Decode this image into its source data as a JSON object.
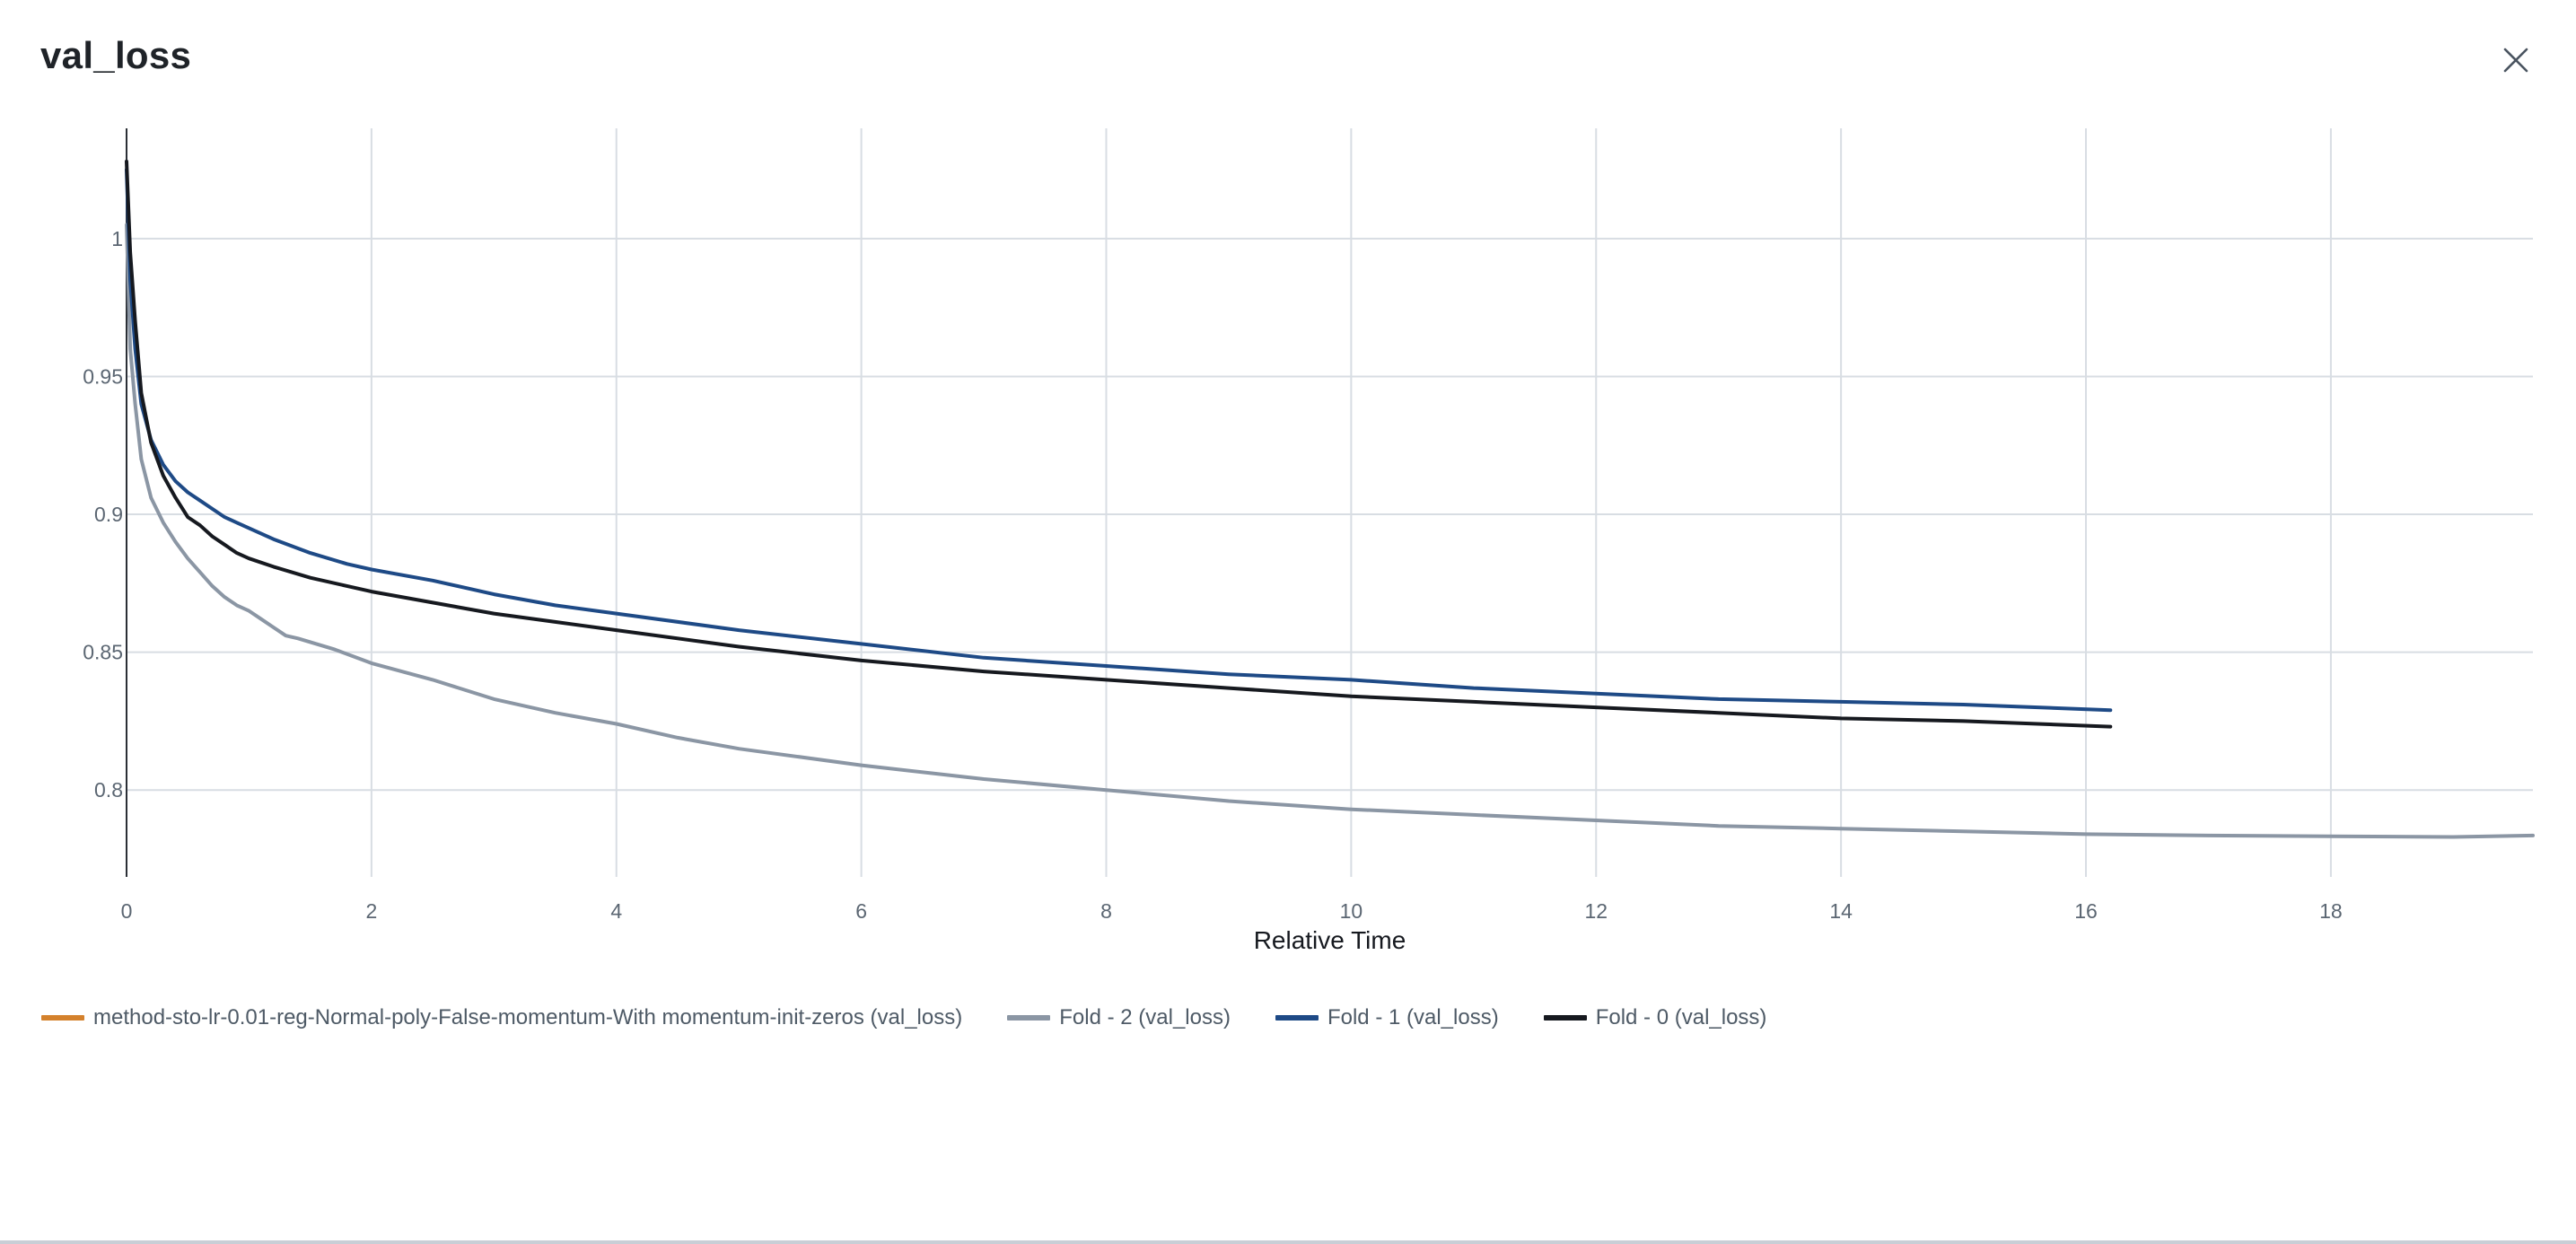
{
  "modal": {
    "title": "val_loss",
    "close_icon": "close-icon"
  },
  "chart_data": {
    "type": "line",
    "title": "val_loss",
    "xlabel": "Relative Time",
    "ylabel": "",
    "xlim": [
      0,
      19.65
    ],
    "ylim": [
      0.7685,
      1.04
    ],
    "xticks": [
      0,
      2,
      4,
      6,
      8,
      10,
      12,
      14,
      16,
      18
    ],
    "yticks": [
      0.8,
      0.85,
      0.9,
      0.95,
      1
    ],
    "ytick_labels": [
      "0.8",
      "0.85",
      "0.9",
      "0.95",
      "1"
    ],
    "grid": true,
    "legend_position": "bottom",
    "series": [
      {
        "name": "method-sto-lr-0.01-reg-Normal-poly-False-momentum-With momentum-init-zeros (val_loss)",
        "color": "#d4812c",
        "x": [],
        "y": []
      },
      {
        "name": "Fold - 2 (val_loss)",
        "color": "#8b96a4",
        "x": [
          0,
          0.03,
          0.07,
          0.12,
          0.2,
          0.3,
          0.4,
          0.5,
          0.6,
          0.7,
          0.8,
          0.9,
          1.0,
          1.1,
          1.2,
          1.3,
          1.4,
          1.7,
          2.0,
          2.5,
          3.0,
          3.5,
          4.0,
          4.5,
          5.0,
          6.0,
          7.0,
          8.0,
          9.0,
          10.0,
          11.0,
          12.0,
          13.0,
          14.0,
          15.0,
          16.0,
          17.0,
          18.0,
          19.0,
          19.65
        ],
        "y": [
          1.005,
          0.96,
          0.94,
          0.92,
          0.906,
          0.897,
          0.89,
          0.884,
          0.879,
          0.874,
          0.87,
          0.867,
          0.865,
          0.862,
          0.859,
          0.856,
          0.855,
          0.851,
          0.846,
          0.84,
          0.833,
          0.828,
          0.824,
          0.819,
          0.815,
          0.809,
          0.804,
          0.8,
          0.796,
          0.793,
          0.791,
          0.789,
          0.787,
          0.786,
          0.785,
          0.784,
          0.7835,
          0.7832,
          0.783,
          0.7835
        ]
      },
      {
        "name": "Fold - 1 (val_loss)",
        "color": "#1e4a86",
        "x": [
          0,
          0.03,
          0.07,
          0.12,
          0.2,
          0.3,
          0.4,
          0.5,
          0.6,
          0.7,
          0.8,
          0.9,
          1.0,
          1.2,
          1.5,
          1.8,
          2.0,
          2.5,
          3.0,
          3.5,
          4.0,
          5.0,
          6.0,
          7.0,
          8.0,
          9.0,
          10.0,
          11.0,
          12.0,
          13.0,
          14.0,
          15.0,
          16.2
        ],
        "y": [
          1.025,
          0.985,
          0.96,
          0.94,
          0.927,
          0.918,
          0.912,
          0.908,
          0.905,
          0.902,
          0.899,
          0.897,
          0.895,
          0.891,
          0.886,
          0.882,
          0.88,
          0.876,
          0.871,
          0.867,
          0.864,
          0.858,
          0.853,
          0.848,
          0.845,
          0.842,
          0.84,
          0.837,
          0.835,
          0.833,
          0.832,
          0.831,
          0.829
        ]
      },
      {
        "name": "Fold - 0 (val_loss)",
        "color": "#16191f",
        "x": [
          0,
          0.03,
          0.07,
          0.12,
          0.2,
          0.3,
          0.4,
          0.5,
          0.6,
          0.7,
          0.8,
          0.9,
          1.0,
          1.2,
          1.5,
          1.8,
          2.0,
          2.5,
          3.0,
          3.5,
          4.0,
          5.0,
          6.0,
          7.0,
          8.0,
          9.0,
          10.0,
          11.0,
          12.0,
          13.0,
          14.0,
          15.0,
          16.2
        ],
        "y": [
          1.028,
          0.995,
          0.97,
          0.944,
          0.926,
          0.914,
          0.906,
          0.899,
          0.896,
          0.892,
          0.889,
          0.886,
          0.884,
          0.881,
          0.877,
          0.874,
          0.872,
          0.868,
          0.864,
          0.861,
          0.858,
          0.852,
          0.847,
          0.843,
          0.84,
          0.837,
          0.834,
          0.832,
          0.83,
          0.828,
          0.826,
          0.825,
          0.823
        ]
      }
    ]
  }
}
